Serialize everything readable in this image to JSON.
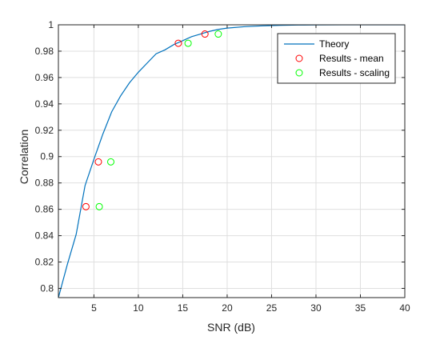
{
  "chart_data": {
    "type": "line",
    "title": "",
    "xlabel": "SNR (dB)",
    "ylabel": "Correlation",
    "xlim": [
      1,
      40
    ],
    "ylim": [
      0.793,
      1.0
    ],
    "xticks": [
      5,
      10,
      15,
      20,
      25,
      30,
      35,
      40
    ],
    "yticks": [
      0.8,
      0.82,
      0.84,
      0.86,
      0.88,
      0.9,
      0.92,
      0.94,
      0.96,
      0.98,
      1
    ],
    "ytick_labels": [
      "0.8",
      "0.82",
      "0.84",
      "0.86",
      "0.88",
      "0.9",
      "0.92",
      "0.94",
      "0.96",
      "0.98",
      "1"
    ],
    "grid": true,
    "legend_position": "top-right",
    "series": [
      {
        "name": "Theory",
        "kind": "line",
        "color": "#0072bd",
        "x": [
          1,
          2,
          3,
          4,
          5,
          6,
          7,
          8,
          9,
          10,
          11,
          12,
          13,
          14,
          15,
          16,
          17,
          18,
          19,
          20,
          22,
          24,
          26,
          28,
          30,
          33,
          36,
          40
        ],
        "y": [
          0.793,
          0.818,
          0.841,
          0.878,
          0.898,
          0.917,
          0.934,
          0.946,
          0.956,
          0.964,
          0.971,
          0.978,
          0.981,
          0.985,
          0.988,
          0.991,
          0.993,
          0.995,
          0.9965,
          0.9975,
          0.9986,
          0.9992,
          0.9996,
          0.9998,
          0.9999,
          1.0,
          1.0,
          1.0
        ]
      },
      {
        "name": "Results - mean",
        "kind": "scatter",
        "marker": "circle",
        "color": "#ff0000",
        "x": [
          4.1,
          5.5,
          14.5,
          17.5
        ],
        "y": [
          0.862,
          0.896,
          0.986,
          0.993
        ]
      },
      {
        "name": "Results - scaling",
        "kind": "scatter",
        "marker": "circle",
        "color": "#00ff00",
        "x": [
          5.6,
          6.9,
          15.6,
          19.0
        ],
        "y": [
          0.862,
          0.896,
          0.986,
          0.993
        ]
      }
    ]
  },
  "colors": {
    "axis": "#262626",
    "grid": "#dfdfdf",
    "legend_border": "#262626"
  }
}
